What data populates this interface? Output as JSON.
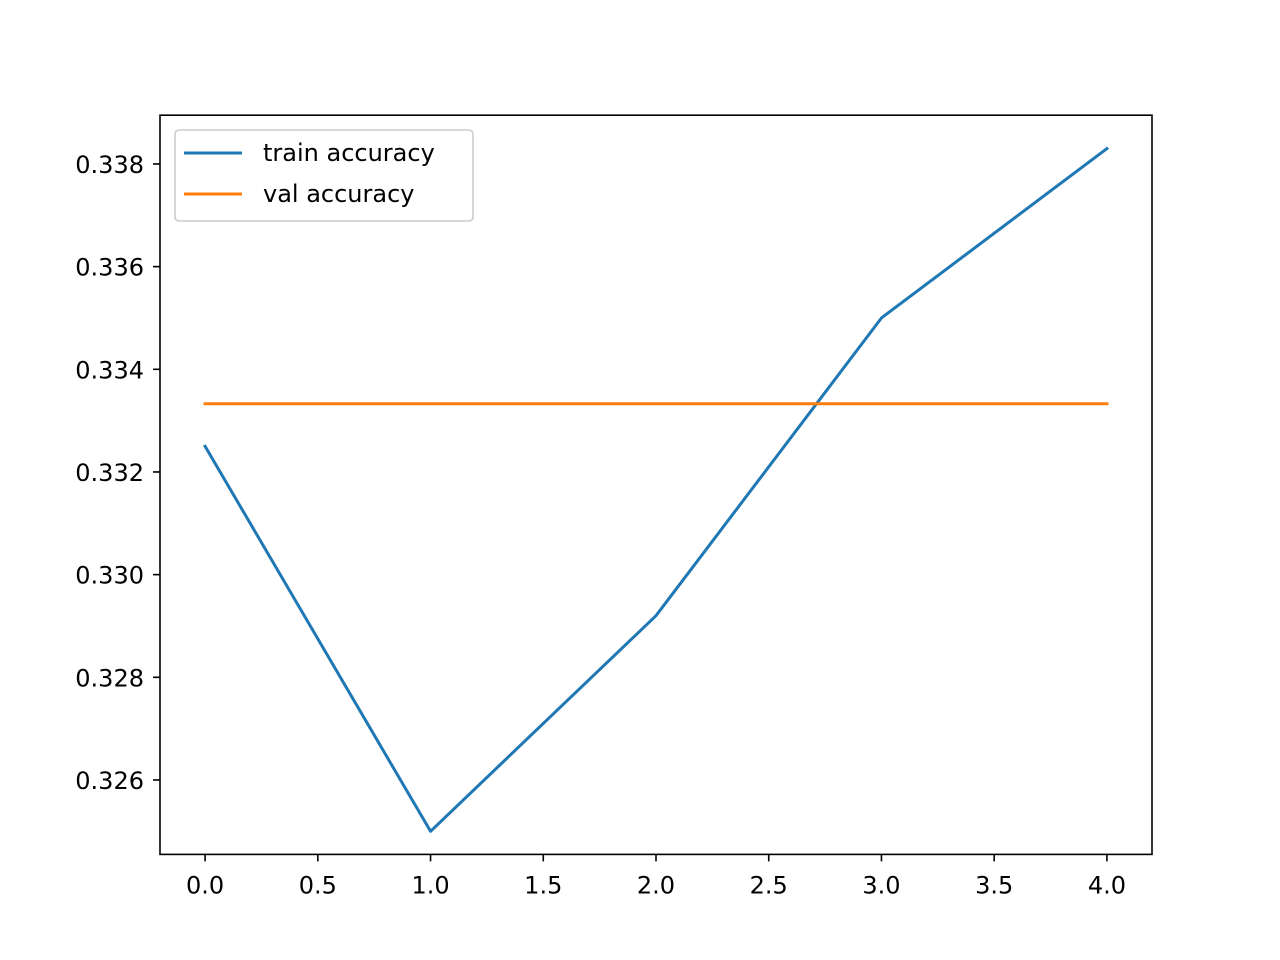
{
  "chart_data": {
    "type": "line",
    "x": [
      0,
      1,
      2,
      3,
      4
    ],
    "series": [
      {
        "name": "train accuracy",
        "color": "#1f77b4",
        "values": [
          0.3325,
          0.325,
          0.3292,
          0.335,
          0.3383
        ]
      },
      {
        "name": "val accuracy",
        "color": "#ff7f0e",
        "values": [
          0.33333,
          0.33333,
          0.33333,
          0.33333,
          0.33333
        ]
      }
    ],
    "xlim": [
      -0.2,
      4.2
    ],
    "ylim": [
      0.32455,
      0.33895
    ],
    "xticks": [
      0.0,
      0.5,
      1.0,
      1.5,
      2.0,
      2.5,
      3.0,
      3.5,
      4.0
    ],
    "xtick_labels": [
      "0.0",
      "0.5",
      "1.0",
      "1.5",
      "2.0",
      "2.5",
      "3.0",
      "3.5",
      "4.0"
    ],
    "yticks": [
      0.326,
      0.328,
      0.33,
      0.332,
      0.334,
      0.336,
      0.338
    ],
    "ytick_labels": [
      "0.326",
      "0.328",
      "0.330",
      "0.332",
      "0.334",
      "0.336",
      "0.338"
    ],
    "title": "",
    "xlabel": "",
    "ylabel": "",
    "grid": false,
    "legend_position": "top-left"
  }
}
